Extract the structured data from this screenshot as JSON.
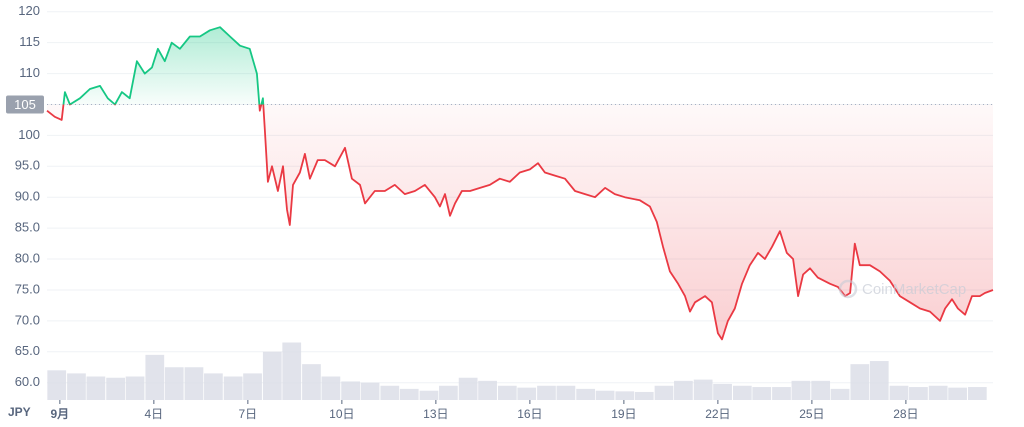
{
  "chart_data": {
    "type": "line",
    "currency_label": "JPY",
    "watermark": "CoinMarketCap",
    "baseline": 105,
    "up_color": "#16c784",
    "down_color": "#ea3943",
    "volume_color": "#d9dce6",
    "xlim": [
      0.59,
      30.78
    ],
    "xticks": [
      {
        "value": 1,
        "label": "9月"
      },
      {
        "value": 4,
        "label": "4日"
      },
      {
        "value": 7,
        "label": "7日"
      },
      {
        "value": 10,
        "label": "10日"
      },
      {
        "value": 13,
        "label": "13日"
      },
      {
        "value": 16,
        "label": "16日"
      },
      {
        "value": 19,
        "label": "19日"
      },
      {
        "value": 22,
        "label": "22日"
      },
      {
        "value": 25,
        "label": "25日"
      },
      {
        "value": 28,
        "label": "28日"
      }
    ],
    "ylim": [
      57.2,
      121.9
    ],
    "yticks": [
      120,
      115,
      110,
      105,
      100,
      {
        "value": 95,
        "label": "95.0"
      },
      {
        "value": 90,
        "label": "90.0"
      },
      {
        "value": 85,
        "label": "85.0"
      },
      {
        "value": 80,
        "label": "80.0"
      },
      {
        "value": 75,
        "label": "75.0"
      },
      {
        "value": 70,
        "label": "70.0"
      },
      {
        "value": 65,
        "label": "65.0"
      },
      {
        "value": 60,
        "label": "60.0"
      }
    ],
    "grid": true,
    "x": [
      0.59,
      0.84,
      1.06,
      1.16,
      1.32,
      1.64,
      1.96,
      2.28,
      2.53,
      2.76,
      2.98,
      3.23,
      3.46,
      3.71,
      3.94,
      4.13,
      4.35,
      4.57,
      4.83,
      5.15,
      5.47,
      5.79,
      6.11,
      6.43,
      6.75,
      7.06,
      7.29,
      7.38,
      7.48,
      7.54,
      7.64,
      7.77,
      7.96,
      8.12,
      8.25,
      8.34,
      8.44,
      8.66,
      8.82,
      8.98,
      9.23,
      9.46,
      9.78,
      10.1,
      10.32,
      10.58,
      10.74,
      11.05,
      11.37,
      11.69,
      12.01,
      12.33,
      12.65,
      12.97,
      13.13,
      13.29,
      13.45,
      13.61,
      13.83,
      14.09,
      14.41,
      14.72,
      15.04,
      15.36,
      15.68,
      16.0,
      16.26,
      16.48,
      16.8,
      17.12,
      17.44,
      17.76,
      18.08,
      18.4,
      18.71,
      19.03,
      19.51,
      19.83,
      20.05,
      20.25,
      20.47,
      20.73,
      20.95,
      21.11,
      21.27,
      21.59,
      21.81,
      22.0,
      22.13,
      22.32,
      22.54,
      22.77,
      23.02,
      23.28,
      23.5,
      23.73,
      23.98,
      24.2,
      24.4,
      24.56,
      24.72,
      24.94,
      25.19,
      25.58,
      25.83,
      26.06,
      26.22,
      26.37,
      26.53,
      26.85,
      27.17,
      27.49,
      27.81,
      28.13,
      28.45,
      28.77,
      29.09,
      29.25,
      29.47,
      29.66,
      29.89,
      30.11,
      30.36,
      30.52,
      30.78
    ],
    "values": [
      104,
      103,
      102.5,
      107,
      105,
      106,
      107.5,
      108,
      106,
      105,
      107,
      106,
      112,
      110,
      111,
      114,
      112,
      115,
      114,
      116,
      116,
      117,
      117.5,
      116,
      114.5,
      114,
      110,
      104,
      106,
      101,
      92.5,
      95,
      91,
      95,
      88,
      85.5,
      92,
      94,
      97,
      93,
      96,
      96,
      95,
      98,
      93,
      92,
      89,
      91,
      91,
      92,
      90.5,
      91,
      92,
      90,
      88.5,
      90.5,
      87,
      89,
      91,
      91,
      91.5,
      92,
      93,
      92.5,
      94,
      94.5,
      95.5,
      94,
      93.5,
      93,
      91,
      90.5,
      90,
      91.5,
      90.5,
      90,
      89.5,
      88.5,
      86,
      82,
      78,
      76,
      74,
      71.5,
      73,
      74,
      73,
      68,
      67,
      70,
      72,
      76,
      79,
      81,
      80,
      82,
      84.5,
      81,
      80,
      74,
      77.5,
      78.5,
      77,
      76,
      75.5,
      74,
      74.5,
      82.5,
      79,
      79,
      78,
      76.5,
      74,
      73,
      72,
      71.5,
      70,
      72,
      73.5,
      72,
      71,
      74,
      74,
      74.5,
      75
    ],
    "volume": {
      "x": [
        0.9,
        1.53,
        2.15,
        2.78,
        3.4,
        4.03,
        4.65,
        5.28,
        5.9,
        6.53,
        7.15,
        7.78,
        8.4,
        9.03,
        9.65,
        10.28,
        10.9,
        11.53,
        12.15,
        12.78,
        13.4,
        14.03,
        14.65,
        15.28,
        15.9,
        16.53,
        17.15,
        17.78,
        18.4,
        19.03,
        19.65,
        20.28,
        20.9,
        21.53,
        22.15,
        22.78,
        23.4,
        24.03,
        24.65,
        25.28,
        25.9,
        26.53,
        27.15,
        27.78,
        28.4,
        29.03,
        29.65,
        30.28
      ],
      "values": [
        62,
        61.5,
        61,
        60.8,
        61,
        64.5,
        62.5,
        62.5,
        61.5,
        61,
        61.5,
        65,
        66.5,
        63,
        61,
        60.2,
        60,
        59.5,
        59,
        58.7,
        59.5,
        60.8,
        60.3,
        59.5,
        59.2,
        59.5,
        59.5,
        59,
        58.7,
        58.6,
        58.5,
        59.5,
        60.3,
        60.5,
        59.8,
        59.5,
        59.3,
        59.3,
        60.3,
        60.3,
        59,
        63,
        63.5,
        59.5,
        59.3,
        59.5,
        59.2,
        59.3
      ]
    }
  }
}
